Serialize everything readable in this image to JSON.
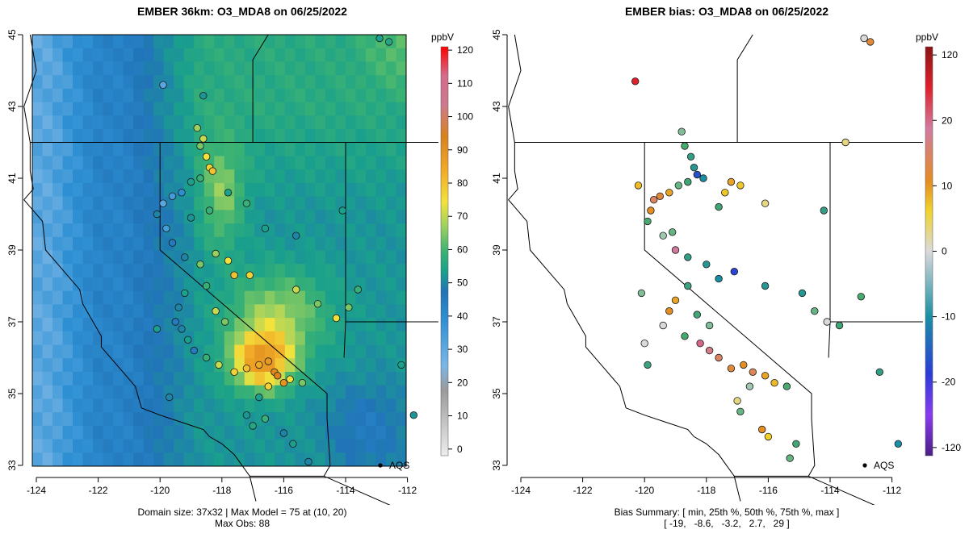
{
  "left_panel": {
    "title": "EMBER 36km: O3_MDA8 on 06/25/2022",
    "footer_line1": "Domain size: 37x32 | Max Model = 75 at (10, 20)",
    "footer_line2": "Max Obs: 88",
    "legend_unit": "ppbV",
    "legend_ticks": [
      "0",
      "10",
      "20",
      "30",
      "40",
      "50",
      "60",
      "70",
      "80",
      "90",
      "100",
      "110",
      "120"
    ],
    "aqs_label": "AQS"
  },
  "right_panel": {
    "title": "EMBER bias: O3_MDA8 on 06/25/2022",
    "footer_line1": "Bias Summary: [ min, 25th %, 50th %, 75th %, max ]",
    "footer_line2": "[ -19,   -8.6,   -3.2,   2.7,   29 ]",
    "legend_unit": "ppbV",
    "legend_ticks": [
      "120",
      "20",
      "10",
      "0",
      "-10",
      "-20",
      "-120"
    ],
    "aqs_label": "AQS"
  },
  "axes": {
    "x_ticks": [
      "-124",
      "-122",
      "-120",
      "-118",
      "-116",
      "-114",
      "-112"
    ],
    "y_ticks": [
      "33",
      "35",
      "37",
      "39",
      "41",
      "43",
      "45"
    ]
  },
  "chart_data": [
    {
      "type": "map",
      "title": "EMBER 36km: O3_MDA8 on 06/25/2022",
      "xlim": [
        -124.3,
        -111.7
      ],
      "ylim": [
        32.8,
        45.2
      ],
      "colorbar": {
        "unit": "ppbV",
        "range": [
          0,
          120
        ]
      },
      "legend_marker": "AQS",
      "model_max": 75,
      "obs_max": 88,
      "stations": [
        [
          -119.9,
          43.6,
          30
        ],
        [
          -118.6,
          43.3,
          48
        ],
        [
          -118.8,
          42.4,
          62
        ],
        [
          -118.6,
          42.1,
          65
        ],
        [
          -118.7,
          41.9,
          60
        ],
        [
          -118.5,
          41.6,
          68
        ],
        [
          -118.4,
          41.3,
          70
        ],
        [
          -118.3,
          41.2,
          72
        ],
        [
          -118.7,
          41.0,
          55
        ],
        [
          -119.0,
          40.9,
          50
        ],
        [
          -119.3,
          40.6,
          35
        ],
        [
          -119.6,
          40.5,
          32
        ],
        [
          -119.9,
          40.3,
          30
        ],
        [
          -120.1,
          40.0,
          45
        ],
        [
          -119.8,
          39.6,
          32
        ],
        [
          -119.6,
          39.2,
          40
        ],
        [
          -119.2,
          38.8,
          45
        ],
        [
          -118.7,
          38.6,
          60
        ],
        [
          -118.2,
          38.9,
          62
        ],
        [
          -117.8,
          38.7,
          68
        ],
        [
          -117.6,
          38.3,
          72
        ],
        [
          -117.1,
          38.3,
          70
        ],
        [
          -118.5,
          38.0,
          55
        ],
        [
          -119.2,
          37.8,
          50
        ],
        [
          -119.4,
          37.4,
          45
        ],
        [
          -118.2,
          37.3,
          65
        ],
        [
          -117.9,
          37.0,
          60
        ],
        [
          -119.5,
          37.0,
          40
        ],
        [
          -119.3,
          36.8,
          45
        ],
        [
          -119.1,
          36.5,
          50
        ],
        [
          -118.9,
          36.2,
          40
        ],
        [
          -118.5,
          36.0,
          55
        ],
        [
          -118.1,
          35.8,
          65
        ],
        [
          -117.6,
          35.6,
          70
        ],
        [
          -117.2,
          35.7,
          72
        ],
        [
          -116.8,
          35.8,
          75
        ],
        [
          -116.5,
          35.9,
          80
        ],
        [
          -116.3,
          35.6,
          85
        ],
        [
          -116.2,
          35.5,
          88
        ],
        [
          -116.0,
          35.3,
          82
        ],
        [
          -116.5,
          35.2,
          70
        ],
        [
          -115.8,
          35.4,
          68
        ],
        [
          -115.4,
          35.3,
          60
        ],
        [
          -116.8,
          34.9,
          50
        ],
        [
          -117.2,
          34.4,
          48
        ],
        [
          -117.0,
          34.1,
          52
        ],
        [
          -116.6,
          34.3,
          55
        ],
        [
          -116.0,
          33.9,
          45
        ],
        [
          -115.7,
          33.6,
          50
        ],
        [
          -115.2,
          33.1,
          45
        ],
        [
          -115.6,
          37.9,
          65
        ],
        [
          -114.9,
          37.5,
          60
        ],
        [
          -114.3,
          37.1,
          68
        ],
        [
          -113.9,
          37.4,
          60
        ],
        [
          -113.6,
          37.9,
          55
        ],
        [
          -112.2,
          35.8,
          50
        ],
        [
          -111.8,
          34.4,
          48
        ],
        [
          -112.9,
          44.9,
          50
        ],
        [
          -112.6,
          44.8,
          52
        ],
        [
          -114.1,
          40.1,
          50
        ],
        [
          -115.6,
          39.4,
          45
        ],
        [
          -116.6,
          39.6,
          50
        ],
        [
          -117.2,
          40.3,
          55
        ],
        [
          -117.8,
          40.6,
          50
        ],
        [
          -118.4,
          40.1,
          55
        ],
        [
          -119.0,
          39.9,
          48
        ],
        [
          -120.1,
          36.8,
          50
        ],
        [
          -119.7,
          34.9,
          45
        ]
      ]
    },
    {
      "type": "map",
      "title": "EMBER bias: O3_MDA8 on 06/25/2022",
      "xlim": [
        -124.3,
        -111.7
      ],
      "ylim": [
        32.8,
        45.2
      ],
      "colorbar": {
        "unit": "ppbV",
        "range": [
          -120,
          120
        ],
        "ticks": [
          -120,
          -20,
          -10,
          0,
          10,
          20,
          120
        ]
      },
      "legend_marker": "AQS",
      "bias_summary": {
        "min": -19,
        "p25": -8.6,
        "p50": -3.2,
        "p75": 2.7,
        "max": 29
      },
      "stations": [
        [
          -120.3,
          43.7,
          29
        ],
        [
          -118.8,
          42.3,
          -3
        ],
        [
          -118.7,
          41.9,
          -5
        ],
        [
          -118.5,
          41.6,
          -8
        ],
        [
          -118.4,
          41.3,
          -10
        ],
        [
          -118.3,
          41.1,
          -18
        ],
        [
          -118.1,
          41.0,
          -12
        ],
        [
          -118.6,
          40.9,
          -6
        ],
        [
          -118.9,
          40.8,
          -4
        ],
        [
          -119.2,
          40.6,
          8
        ],
        [
          -119.5,
          40.5,
          12
        ],
        [
          -119.7,
          40.4,
          15
        ],
        [
          -119.8,
          40.1,
          10
        ],
        [
          -119.9,
          39.8,
          -5
        ],
        [
          -119.4,
          39.4,
          -2
        ],
        [
          -119.0,
          39.0,
          20
        ],
        [
          -118.6,
          38.8,
          -8
        ],
        [
          -118.0,
          38.6,
          -10
        ],
        [
          -117.6,
          38.2,
          -12
        ],
        [
          -117.1,
          38.4,
          -19
        ],
        [
          -118.6,
          38.0,
          -7
        ],
        [
          -119.0,
          37.6,
          8
        ],
        [
          -119.2,
          37.3,
          10
        ],
        [
          -118.3,
          37.2,
          -6
        ],
        [
          -117.9,
          36.9,
          -3
        ],
        [
          -119.4,
          36.9,
          0
        ],
        [
          -118.7,
          36.6,
          -5
        ],
        [
          -118.2,
          36.4,
          22
        ],
        [
          -117.9,
          36.2,
          18
        ],
        [
          -117.6,
          36.0,
          15
        ],
        [
          -117.2,
          35.7,
          12
        ],
        [
          -116.8,
          35.8,
          10
        ],
        [
          -116.5,
          35.6,
          14
        ],
        [
          -116.1,
          35.5,
          8
        ],
        [
          -115.8,
          35.3,
          6
        ],
        [
          -116.6,
          35.2,
          -2
        ],
        [
          -115.4,
          35.2,
          -5
        ],
        [
          -117.0,
          34.8,
          2
        ],
        [
          -116.9,
          34.5,
          -4
        ],
        [
          -116.2,
          34.0,
          10
        ],
        [
          -116.0,
          33.8,
          4
        ],
        [
          -115.1,
          33.6,
          -6
        ],
        [
          -115.3,
          33.2,
          -4
        ],
        [
          -114.9,
          37.8,
          -10
        ],
        [
          -114.5,
          37.3,
          -4
        ],
        [
          -114.1,
          37.0,
          0
        ],
        [
          -113.7,
          36.9,
          -6
        ],
        [
          -113.0,
          37.7,
          -5
        ],
        [
          -112.4,
          35.6,
          -8
        ],
        [
          -111.8,
          33.6,
          -12
        ],
        [
          -112.9,
          44.9,
          0
        ],
        [
          -112.7,
          44.8,
          12
        ],
        [
          -113.5,
          42.0,
          2
        ],
        [
          -114.2,
          40.1,
          -8
        ],
        [
          -116.1,
          38.0,
          -10
        ],
        [
          -117.4,
          40.6,
          5
        ],
        [
          -117.2,
          40.9,
          8
        ],
        [
          -116.9,
          40.8,
          5
        ],
        [
          -116.1,
          40.3,
          2
        ],
        [
          -117.6,
          40.2,
          -6
        ],
        [
          -119.1,
          39.5,
          -4
        ],
        [
          -120.2,
          40.8,
          6
        ],
        [
          -120.1,
          37.8,
          -3
        ],
        [
          -120.0,
          36.4,
          0
        ],
        [
          -119.9,
          35.8,
          -7
        ]
      ]
    }
  ]
}
